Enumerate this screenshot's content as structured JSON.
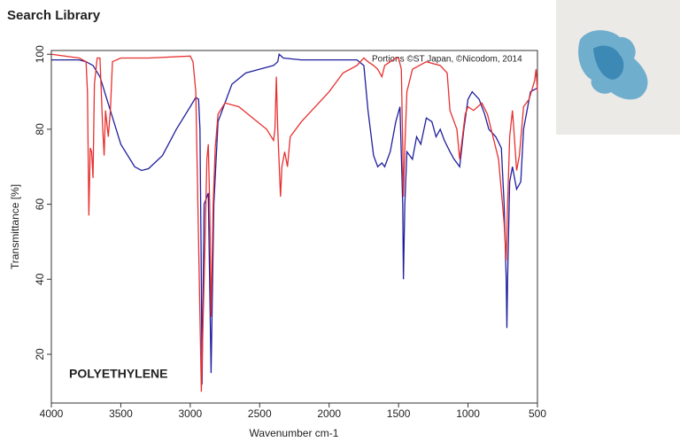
{
  "chart_data": {
    "type": "line",
    "title": "Search Library",
    "x_label": "Wavenumber cm-1",
    "y_label": "Transmittance [%]",
    "annotations": [
      "Portions ©ST Japan, ©Nicodom, 2014",
      "POLYETHYLENE"
    ],
    "xlim": [
      4000,
      500
    ],
    "ylim": [
      7,
      101
    ],
    "xticks": [
      4000,
      3500,
      3000,
      2500,
      2000,
      1500,
      1000,
      500
    ],
    "yticks": [
      20,
      40,
      60,
      80,
      100
    ],
    "series": [
      {
        "color": "#1f1f9e",
        "x": [
          4000,
          3800,
          3750,
          3700,
          3650,
          3600,
          3500,
          3400,
          3350,
          3300,
          3200,
          3100,
          3000,
          2960,
          2940,
          2930,
          2920,
          2915,
          2900,
          2870,
          2850,
          2830,
          2800,
          2700,
          2600,
          2500,
          2400,
          2370,
          2360,
          2330,
          2200,
          2000,
          1800,
          1750,
          1720,
          1680,
          1650,
          1620,
          1600,
          1560,
          1520,
          1490,
          1470,
          1465,
          1455,
          1440,
          1400,
          1370,
          1340,
          1300,
          1260,
          1230,
          1200,
          1170,
          1130,
          1100,
          1060,
          1030,
          1000,
          970,
          920,
          880,
          850,
          800,
          760,
          740,
          725,
          720,
          715,
          700,
          680,
          650,
          620,
          600,
          550,
          500
        ],
        "values": [
          98.5,
          98.5,
          98,
          97,
          94,
          88,
          76,
          70,
          69,
          69.5,
          73,
          80,
          86,
          88.5,
          88,
          80,
          40,
          12,
          60,
          63,
          15,
          60,
          82,
          92,
          95,
          96,
          97,
          98,
          100,
          99,
          98.5,
          98.5,
          98.5,
          97,
          85,
          73,
          70,
          71,
          70,
          74,
          82,
          86,
          60,
          40,
          60,
          74,
          72,
          78,
          76,
          83,
          82,
          78,
          80,
          77,
          74,
          72,
          70,
          80,
          88,
          90,
          88,
          84,
          80,
          78,
          75,
          60,
          40,
          27,
          40,
          66,
          70,
          64,
          66,
          80,
          90,
          91
        ]
      },
      {
        "color": "#e83030",
        "x": [
          4000,
          3800,
          3750,
          3740,
          3730,
          3720,
          3710,
          3700,
          3690,
          3670,
          3650,
          3630,
          3620,
          3610,
          3590,
          3575,
          3560,
          3500,
          3300,
          3000,
          2980,
          2960,
          2940,
          2920,
          2900,
          2880,
          2870,
          2860,
          2850,
          2835,
          2820,
          2800,
          2750,
          2650,
          2550,
          2450,
          2400,
          2390,
          2380,
          2370,
          2350,
          2340,
          2320,
          2300,
          2280,
          2200,
          2100,
          2000,
          1900,
          1800,
          1750,
          1720,
          1680,
          1650,
          1620,
          1600,
          1560,
          1520,
          1500,
          1480,
          1470,
          1465,
          1455,
          1440,
          1400,
          1300,
          1200,
          1150,
          1130,
          1100,
          1080,
          1060,
          1040,
          1020,
          1000,
          960,
          900,
          860,
          820,
          780,
          740,
          725,
          715,
          700,
          680,
          670,
          650,
          630,
          600,
          560,
          520,
          510,
          500
        ],
        "values": [
          100,
          99,
          98,
          90,
          57,
          75,
          74,
          67,
          92,
          99,
          99,
          80,
          73,
          85,
          78,
          85,
          98,
          99,
          99,
          99.5,
          98,
          90,
          50,
          10,
          40,
          72,
          76,
          60,
          30,
          60,
          75,
          84,
          87,
          86,
          83,
          80,
          77,
          80,
          94,
          80,
          62,
          70,
          74,
          70,
          78,
          82,
          86,
          90,
          95,
          97,
          99,
          98,
          97,
          96,
          94,
          97,
          98,
          99,
          99,
          96,
          75,
          62,
          75,
          90,
          96,
          98,
          97,
          95,
          85,
          82,
          80,
          72,
          78,
          84,
          86,
          85,
          87,
          84,
          78,
          72,
          55,
          45,
          60,
          78,
          85,
          80,
          69,
          73,
          86,
          88,
          93,
          96,
          90
        ]
      }
    ]
  }
}
